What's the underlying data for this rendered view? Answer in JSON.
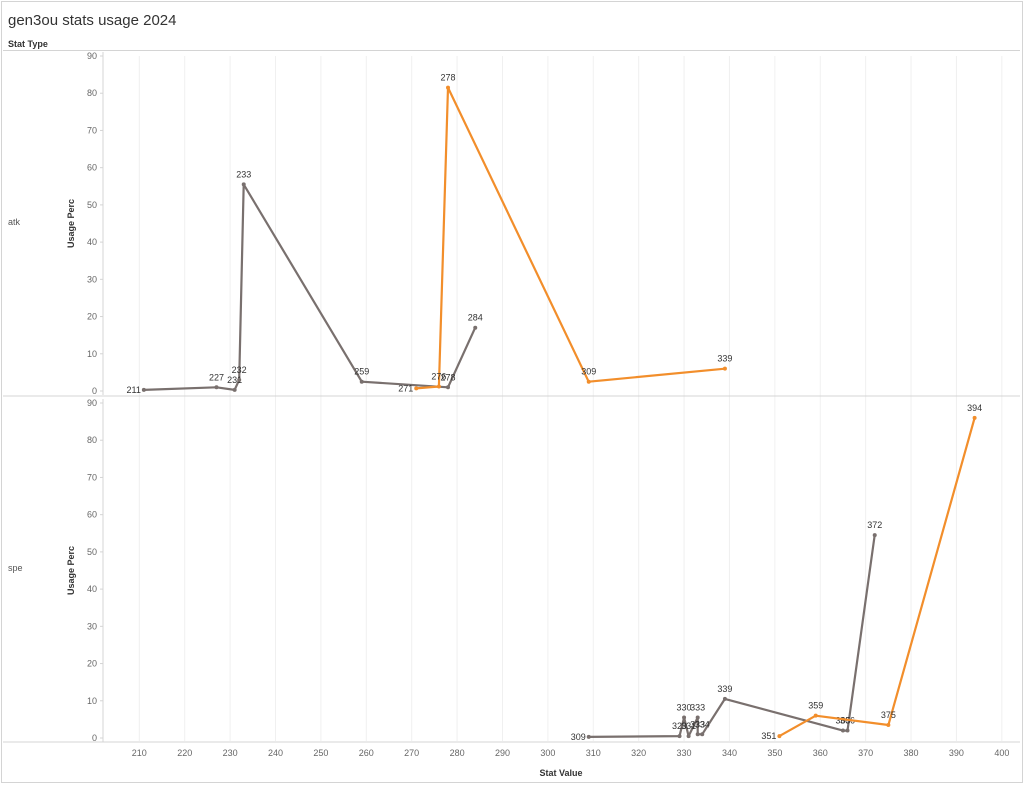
{
  "title": "gen3ou stats usage 2024",
  "row_header": "Stat Type",
  "colors": {
    "orange": "#f28e2b",
    "gray": "#79706e"
  },
  "chart_data": {
    "type": "line",
    "xlabel": "Stat Value",
    "ylabel": "Usage Perc",
    "xlim": [
      202,
      404
    ],
    "xticks": [
      210,
      220,
      230,
      240,
      250,
      260,
      270,
      280,
      290,
      300,
      310,
      320,
      330,
      340,
      350,
      360,
      370,
      380,
      390,
      400
    ],
    "ylim": [
      0,
      90
    ],
    "yticks": [
      0,
      10,
      20,
      30,
      40,
      50,
      60,
      70,
      80,
      90
    ],
    "panels": [
      {
        "stat_type": "atk",
        "series": [
          {
            "color": "gray",
            "points": [
              {
                "x": 211,
                "y": 0.3
              },
              {
                "x": 227,
                "y": 1.0
              },
              {
                "x": 231,
                "y": 0.3
              },
              {
                "x": 232,
                "y": 3.0
              },
              {
                "x": 233,
                "y": 55.5
              },
              {
                "x": 259,
                "y": 2.5
              },
              {
                "x": 278,
                "y": 1.0
              },
              {
                "x": 284,
                "y": 17.0
              }
            ]
          },
          {
            "color": "orange",
            "points": [
              {
                "x": 271,
                "y": 0.7
              },
              {
                "x": 276,
                "y": 1.2
              },
              {
                "x": 278,
                "y": 81.5
              },
              {
                "x": 309,
                "y": 2.5
              },
              {
                "x": 339,
                "y": 6.0
              }
            ]
          }
        ]
      },
      {
        "stat_type": "spe",
        "series": [
          {
            "color": "gray",
            "points": [
              {
                "x": 309,
                "y": 0.3
              },
              {
                "x": 329,
                "y": 0.5
              },
              {
                "x": 330,
                "y": 5.5
              },
              {
                "x": 331,
                "y": 0.5
              },
              {
                "x": 333,
                "y": 5.5
              },
              {
                "x": 333,
                "y": 1.0
              },
              {
                "x": 334,
                "y": 1.0
              },
              {
                "x": 339,
                "y": 10.5
              },
              {
                "x": 365,
                "y": 2.0
              },
              {
                "x": 366,
                "y": 2.0
              },
              {
                "x": 372,
                "y": 54.5
              }
            ]
          },
          {
            "color": "orange",
            "points": [
              {
                "x": 351,
                "y": 0.5
              },
              {
                "x": 359,
                "y": 6.0
              },
              {
                "x": 375,
                "y": 3.5
              },
              {
                "x": 394,
                "y": 86.0
              }
            ]
          }
        ]
      }
    ]
  }
}
